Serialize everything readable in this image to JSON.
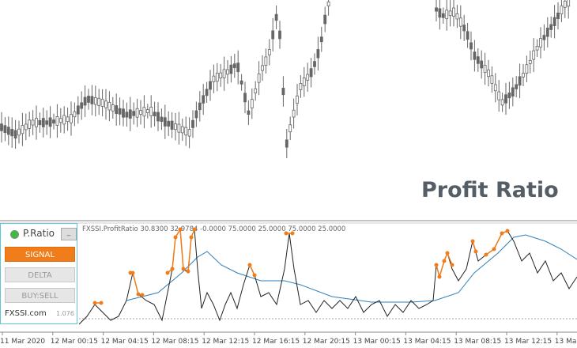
{
  "watermark": "Profit Ratio",
  "indicator_label": "FXSSI.ProfitRatio 30.8300 32.9784 -0.0000 75.0000 25.0000 75.0000 25.0000",
  "panel": {
    "title": "P.Ratio",
    "buttons": [
      "SIGNAL",
      "DELTA",
      "BUY:SELL"
    ],
    "brand": "FXSSI.com",
    "version": "1.076"
  },
  "time_axis": [
    "11 Mar 2020",
    "12 Mar 00:15",
    "12 Mar 04:15",
    "12 Mar 08:15",
    "12 Mar 12:15",
    "12 Mar 16:15",
    "12 Mar 20:15",
    "13 Mar 00:15",
    "13 Mar 04:15",
    "13 Mar 08:15",
    "13 Mar 12:15",
    "13 Ma"
  ]
}
